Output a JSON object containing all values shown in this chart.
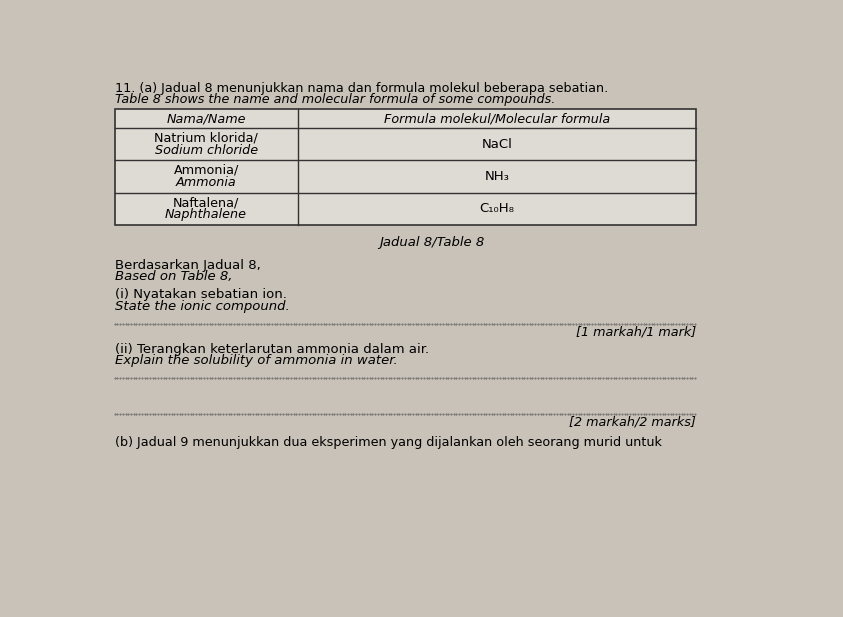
{
  "background_color": "#c8c2b8",
  "table_bg": "#e8e4de",
  "header_text_line1": "11. (a) Jadual 8 menunjukkan nama dan formula molekul beberapa sebatian.",
  "header_text_line2": "Table 8 shows the name and molecular formula of some compounds.",
  "table_caption": "Jadual 8/Table 8",
  "table": {
    "col1_header": "Nama/Name",
    "col2_header": "Formula molekul/Molecular formula",
    "rows": [
      {
        "name_line1": "Natrium klorida/",
        "name_line2": "Sodium chloride",
        "formula": "NaCl"
      },
      {
        "name_line1": "Ammonia/",
        "name_line2": "Ammonia",
        "formula": "NH₃"
      },
      {
        "name_line1": "Naftalena/",
        "name_line2": "Naphthalene",
        "formula": "C₁₀H₈"
      }
    ]
  },
  "section_header_line1": "Berdasarkan Jadual 8,",
  "section_header_line2": "Based on Table 8,",
  "question_i_line1": "(i) Nyatakan sebatian ion.",
  "question_i_line2": "State the ionic compound.",
  "mark_i": "[1 markah/1 mark]",
  "question_ii_line1": "(ii) Terangkan keterlarutan ammonia dalam air.",
  "question_ii_line2": "Explain the solubility of ammonia in water.",
  "mark_ii": "[2 markah/2 marks]",
  "footer_text": "(b) Jadual 9 menunjukkan dua eksperimen yang dijalankan oleh seorang murid untuk"
}
